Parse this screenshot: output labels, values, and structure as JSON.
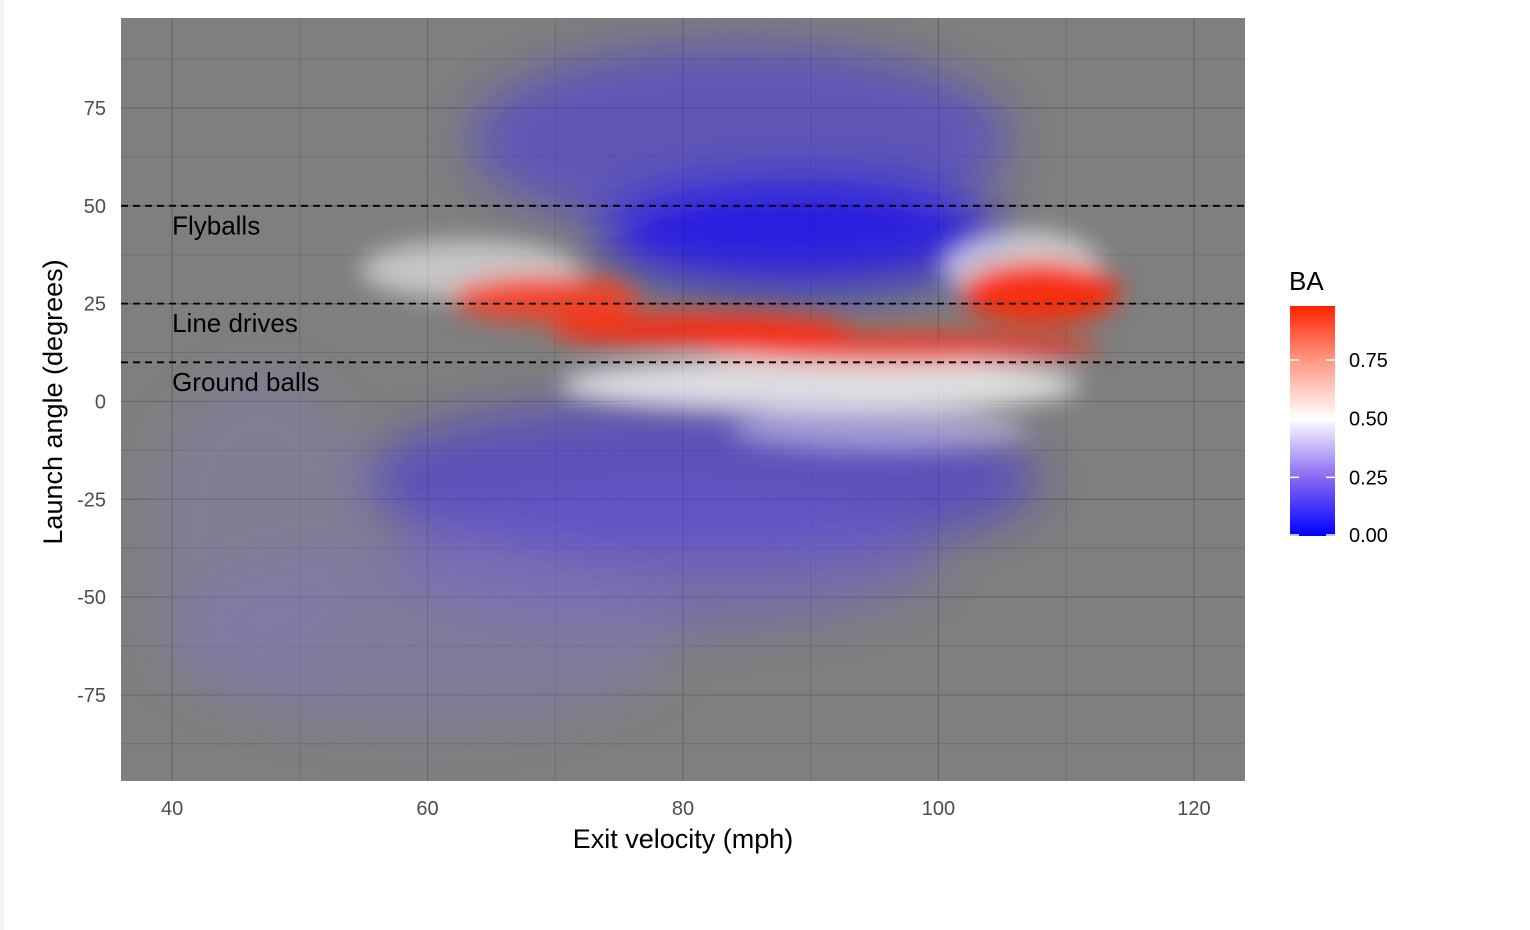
{
  "chart_data": {
    "type": "scatter",
    "xlabel": "Exit velocity (mph)",
    "ylabel": "Launch angle (degrees)",
    "xlim": [
      36,
      124
    ],
    "ylim": [
      -97,
      98
    ],
    "x_ticks": [
      40,
      60,
      80,
      100,
      120
    ],
    "y_ticks": [
      -75,
      -50,
      -25,
      0,
      25,
      50,
      75
    ],
    "grid": true,
    "background": "#7f7f7f",
    "color_scale": {
      "name": "BA",
      "low_color": "#0000ff",
      "mid_color": "#ffffff",
      "high_color": "#ff2200",
      "midpoint": 0.5,
      "limits": [
        0,
        0.98
      ],
      "breaks": [
        0.0,
        0.25,
        0.5,
        0.75
      ],
      "break_labels": [
        "0.00",
        "0.25",
        "0.50",
        "0.75"
      ]
    },
    "hlines": [
      {
        "y": 50,
        "style": "dashed",
        "color": "#000000"
      },
      {
        "y": 25,
        "style": "dashed",
        "color": "#000000"
      },
      {
        "y": 10,
        "style": "dashed",
        "color": "#000000"
      }
    ],
    "annotations": [
      {
        "text": "Flyballs",
        "x": 40,
        "y": 45
      },
      {
        "text": "Line drives",
        "x": 40,
        "y": 20
      },
      {
        "text": "Ground balls",
        "x": 40,
        "y": 5
      }
    ],
    "regions": [
      {
        "x": [
          55,
          70
        ],
        "y": [
          25,
          32
        ],
        "ba": 0.85
      },
      {
        "x": [
          65,
          110
        ],
        "y": [
          12,
          22
        ],
        "ba": 0.95
      },
      {
        "x": [
          102,
          113
        ],
        "y": [
          24,
          32
        ],
        "ba": 0.98
      },
      {
        "x": [
          80,
          100
        ],
        "y": [
          35,
          55
        ],
        "ba": 0.02
      },
      {
        "x": [
          60,
          100
        ],
        "y": [
          55,
          90
        ],
        "ba": 0.05
      },
      {
        "x": [
          60,
          100
        ],
        "y": [
          -45,
          -5
        ],
        "ba": 0.12
      },
      {
        "x": [
          40,
          75
        ],
        "y": [
          -90,
          -45
        ],
        "ba": 0.3
      }
    ]
  }
}
